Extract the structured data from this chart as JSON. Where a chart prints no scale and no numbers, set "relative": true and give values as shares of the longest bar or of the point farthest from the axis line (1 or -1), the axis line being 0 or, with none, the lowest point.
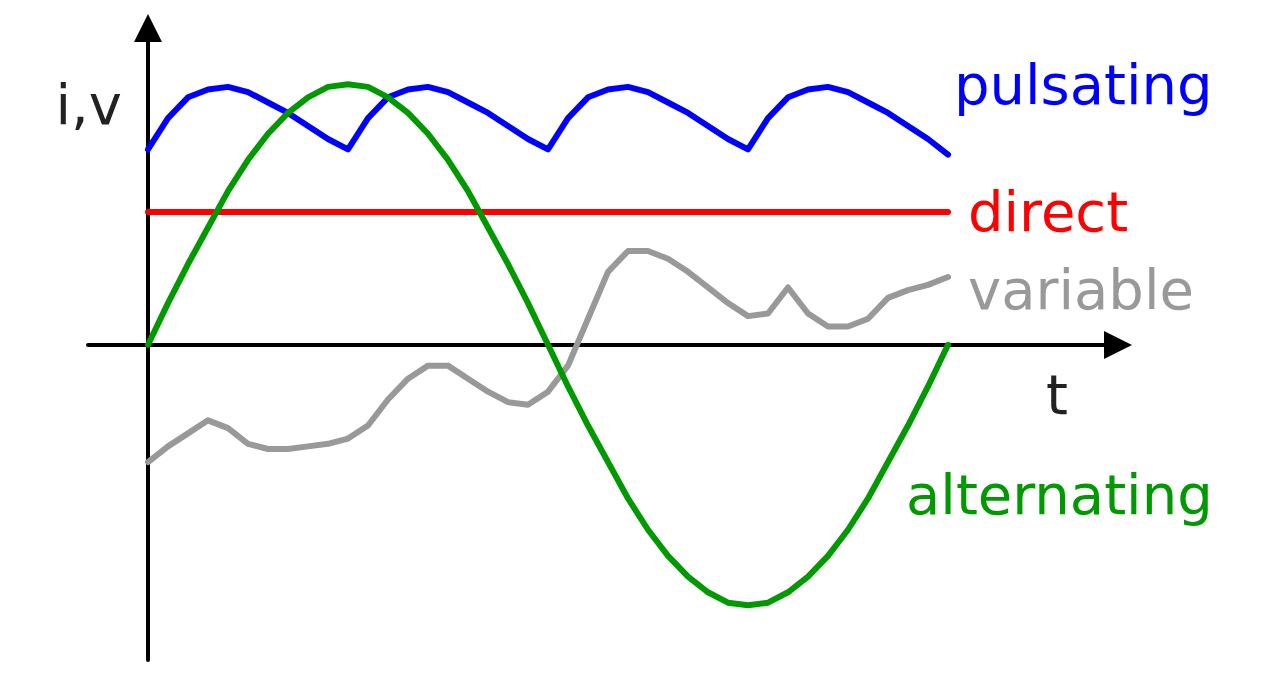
{
  "chart_data": {
    "type": "line",
    "relative": true,
    "xlabel": "t",
    "ylabel": "i,v",
    "marker": "none",
    "line_style": "solid",
    "categories": [
      null,
      null,
      null,
      null,
      null,
      null,
      null,
      null,
      null,
      null,
      null,
      null,
      null,
      null,
      null,
      null,
      null,
      null,
      null,
      null,
      null,
      null,
      null,
      null,
      null,
      null,
      null,
      null,
      null,
      null,
      null,
      null,
      null,
      null,
      null,
      null,
      null,
      null,
      null,
      null,
      null
    ],
    "series": [
      {
        "name": "pulsating",
        "color": "#0000ff",
        "values": [
          0.75,
          0.87,
          0.95,
          0.98,
          0.99,
          0.97,
          0.93,
          0.89,
          0.84,
          0.79,
          0.75,
          0.87,
          0.95,
          0.98,
          0.99,
          0.97,
          0.93,
          0.89,
          0.84,
          0.79,
          0.75,
          0.87,
          0.95,
          0.98,
          0.99,
          0.97,
          0.93,
          0.89,
          0.84,
          0.79,
          0.75,
          0.87,
          0.95,
          0.98,
          0.99,
          0.97,
          0.93,
          0.89,
          0.84,
          0.79,
          0.73
        ]
      },
      {
        "name": "direct",
        "color": "#ff0000",
        "values": [
          0.51,
          0.51,
          0.51,
          0.51,
          0.51,
          0.51,
          0.51,
          0.51,
          0.51,
          0.51,
          0.51,
          0.51,
          0.51,
          0.51,
          0.51,
          0.51,
          0.51,
          0.51,
          0.51,
          0.51,
          0.51,
          0.51,
          0.51,
          0.51,
          0.51,
          0.51,
          0.51,
          0.51,
          0.51,
          0.51,
          0.51,
          0.51,
          0.51,
          0.51,
          0.51,
          0.51,
          0.51,
          0.51,
          0.51,
          0.51,
          0.51
        ]
      },
      {
        "name": "variable",
        "color": "#999999",
        "values": [
          -0.45,
          -0.39,
          -0.34,
          -0.29,
          -0.32,
          -0.38,
          -0.4,
          -0.4,
          -0.39,
          -0.38,
          -0.36,
          -0.31,
          -0.21,
          -0.13,
          -0.08,
          -0.08,
          -0.13,
          -0.18,
          -0.22,
          -0.23,
          -0.18,
          -0.08,
          0.1,
          0.28,
          0.36,
          0.36,
          0.33,
          0.28,
          0.22,
          0.16,
          0.11,
          0.12,
          0.22,
          0.12,
          0.07,
          0.07,
          0.1,
          0.18,
          0.21,
          0.23,
          0.26
        ]
      },
      {
        "name": "alternating",
        "color": "#009900",
        "values": [
          0,
          0.16,
          0.31,
          0.45,
          0.59,
          0.71,
          0.81,
          0.89,
          0.95,
          0.99,
          1,
          0.99,
          0.95,
          0.89,
          0.81,
          0.71,
          0.59,
          0.45,
          0.31,
          0.16,
          0,
          -0.16,
          -0.31,
          -0.45,
          -0.59,
          -0.71,
          -0.81,
          -0.89,
          -0.95,
          -0.99,
          -1,
          -0.99,
          -0.95,
          -0.89,
          -0.81,
          -0.71,
          -0.59,
          -0.45,
          -0.31,
          -0.16,
          0
        ]
      }
    ]
  }
}
